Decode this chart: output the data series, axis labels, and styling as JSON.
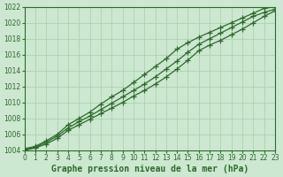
{
  "title": "Graphe pression niveau de la mer (hPa)",
  "hours": [
    0,
    1,
    2,
    3,
    4,
    5,
    6,
    7,
    8,
    9,
    10,
    11,
    12,
    13,
    14,
    15,
    16,
    17,
    18,
    19,
    20,
    21,
    22,
    23
  ],
  "line1": [
    1004.0,
    1004.3,
    1004.8,
    1005.5,
    1006.5,
    1007.2,
    1007.9,
    1008.6,
    1009.3,
    1010.0,
    1010.8,
    1011.5,
    1012.3,
    1013.2,
    1014.2,
    1015.3,
    1016.5,
    1017.2,
    1017.8,
    1018.5,
    1019.2,
    1020.0,
    1020.8,
    1021.5
  ],
  "line2": [
    1004.1,
    1004.4,
    1005.0,
    1005.8,
    1006.8,
    1007.6,
    1008.3,
    1009.1,
    1009.9,
    1010.7,
    1011.5,
    1012.3,
    1013.2,
    1014.2,
    1015.2,
    1016.3,
    1017.3,
    1018.0,
    1018.7,
    1019.4,
    1020.1,
    1020.8,
    1021.3,
    1021.7
  ],
  "line3": [
    1004.2,
    1004.5,
    1005.2,
    1006.0,
    1007.2,
    1008.0,
    1008.8,
    1009.8,
    1010.7,
    1011.5,
    1012.5,
    1013.5,
    1014.5,
    1015.5,
    1016.7,
    1017.5,
    1018.2,
    1018.8,
    1019.4,
    1020.0,
    1020.6,
    1021.2,
    1021.8,
    1022.0
  ],
  "line_color": "#2d6a2d",
  "bg_color": "#cce8d0",
  "grid_color": "#aaccaa",
  "ylim": [
    1004,
    1022
  ],
  "yticks": [
    1004,
    1006,
    1008,
    1010,
    1012,
    1014,
    1016,
    1018,
    1020,
    1022
  ],
  "tick_fontsize": 5.5,
  "label_fontsize": 7,
  "marker": "P",
  "markersize": 3,
  "linewidth": 0.9
}
